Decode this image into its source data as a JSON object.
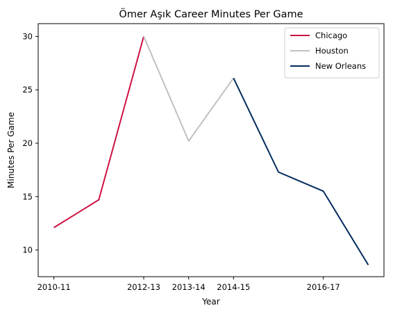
{
  "chart_data": {
    "type": "line",
    "title": "Ömer Aşık Career Minutes Per Game",
    "xlabel": "Year",
    "ylabel": "Minutes Per Game",
    "x_ticks": [
      "2010-11",
      "2012-13",
      "2013-14",
      "2014-15",
      "2016-17"
    ],
    "y_ticks": [
      10,
      15,
      20,
      25,
      30
    ],
    "ylim": [
      7.5,
      31.2
    ],
    "grid": false,
    "legend_position": "top-right",
    "series": [
      {
        "name": "Chicago",
        "color": "#CE1141",
        "points": [
          {
            "x": "2010-11",
            "y": 12.1
          },
          {
            "x": "2011-12",
            "y": 14.7
          },
          {
            "x": "2012-13",
            "y": 30.0
          }
        ]
      },
      {
        "name": "Houston",
        "color": "#BEC0C2",
        "points": [
          {
            "x": "2012-13",
            "y": 30.0
          },
          {
            "x": "2013-14",
            "y": 20.2
          },
          {
            "x": "2014-15",
            "y": 26.1
          }
        ]
      },
      {
        "name": "New Orleans",
        "color": "#002B5C",
        "points": [
          {
            "x": "2014-15",
            "y": 26.1
          },
          {
            "x": "2015-16",
            "y": 17.3
          },
          {
            "x": "2016-17",
            "y": 15.5
          },
          {
            "x": "2017-18",
            "y": 8.6
          }
        ]
      }
    ]
  }
}
